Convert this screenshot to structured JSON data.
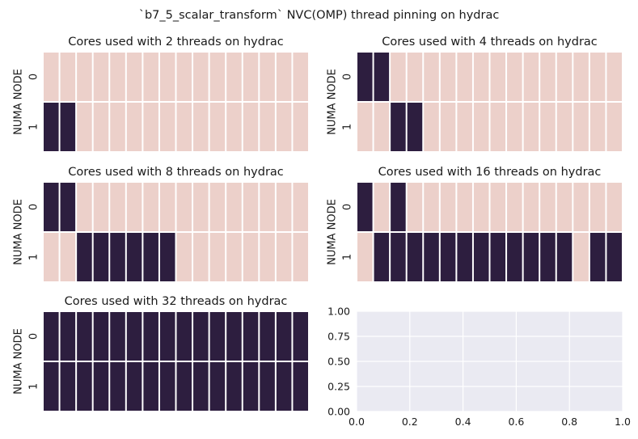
{
  "figure": {
    "suptitle": "`b7_5_scalar_transform` NVC(OMP) thread pinning on hydrac"
  },
  "colors": {
    "used": "#2d1e3f",
    "unused": "#ecd0ca",
    "gap": "#ffffff",
    "empty_axes_bg": "#eaeaf2",
    "grid": "#ffffff"
  },
  "chart_data": [
    {
      "type": "heatmap",
      "title": "Cores used with 2 threads on hydrac",
      "ylabel": "NUMA NODE",
      "yticklabels": [
        "0",
        "1"
      ],
      "values": [
        [
          0,
          0,
          0,
          0,
          0,
          0,
          0,
          0,
          0,
          0,
          0,
          0,
          0,
          0,
          0,
          0
        ],
        [
          1,
          1,
          0,
          0,
          0,
          0,
          0,
          0,
          0,
          0,
          0,
          0,
          0,
          0,
          0,
          0
        ]
      ]
    },
    {
      "type": "heatmap",
      "title": "Cores used with 4 threads on hydrac",
      "ylabel": "NUMA NODE",
      "yticklabels": [
        "0",
        "1"
      ],
      "values": [
        [
          1,
          1,
          0,
          0,
          0,
          0,
          0,
          0,
          0,
          0,
          0,
          0,
          0,
          0,
          0,
          0
        ],
        [
          0,
          0,
          1,
          1,
          0,
          0,
          0,
          0,
          0,
          0,
          0,
          0,
          0,
          0,
          0,
          0
        ]
      ]
    },
    {
      "type": "heatmap",
      "title": "Cores used with 8 threads on hydrac",
      "ylabel": "NUMA NODE",
      "yticklabels": [
        "0",
        "1"
      ],
      "values": [
        [
          1,
          1,
          0,
          0,
          0,
          0,
          0,
          0,
          0,
          0,
          0,
          0,
          0,
          0,
          0,
          0
        ],
        [
          0,
          0,
          1,
          1,
          1,
          1,
          1,
          1,
          0,
          0,
          0,
          0,
          0,
          0,
          0,
          0
        ]
      ]
    },
    {
      "type": "heatmap",
      "title": "Cores used with 16 threads on hydrac",
      "ylabel": "NUMA NODE",
      "yticklabels": [
        "0",
        "1"
      ],
      "values": [
        [
          1,
          0,
          1,
          0,
          0,
          0,
          0,
          0,
          0,
          0,
          0,
          0,
          0,
          0,
          0,
          0
        ],
        [
          0,
          1,
          1,
          1,
          1,
          1,
          1,
          1,
          1,
          1,
          1,
          1,
          1,
          0,
          1,
          1
        ]
      ]
    },
    {
      "type": "heatmap",
      "title": "Cores used with 32 threads on hydrac",
      "ylabel": "NUMA NODE",
      "yticklabels": [
        "0",
        "1"
      ],
      "values": [
        [
          1,
          1,
          1,
          1,
          1,
          1,
          1,
          1,
          1,
          1,
          1,
          1,
          1,
          1,
          1,
          1
        ],
        [
          1,
          1,
          1,
          1,
          1,
          1,
          1,
          1,
          1,
          1,
          1,
          1,
          1,
          1,
          1,
          1
        ]
      ]
    },
    {
      "type": "line",
      "title": "",
      "xlim": [
        0,
        1
      ],
      "ylim": [
        0,
        1
      ],
      "xticks": [
        "0.0",
        "0.2",
        "0.4",
        "0.6",
        "0.8",
        "1.0"
      ],
      "yticks": [
        "0.00",
        "0.25",
        "0.50",
        "0.75",
        "1.00"
      ],
      "grid": true,
      "series": []
    }
  ]
}
